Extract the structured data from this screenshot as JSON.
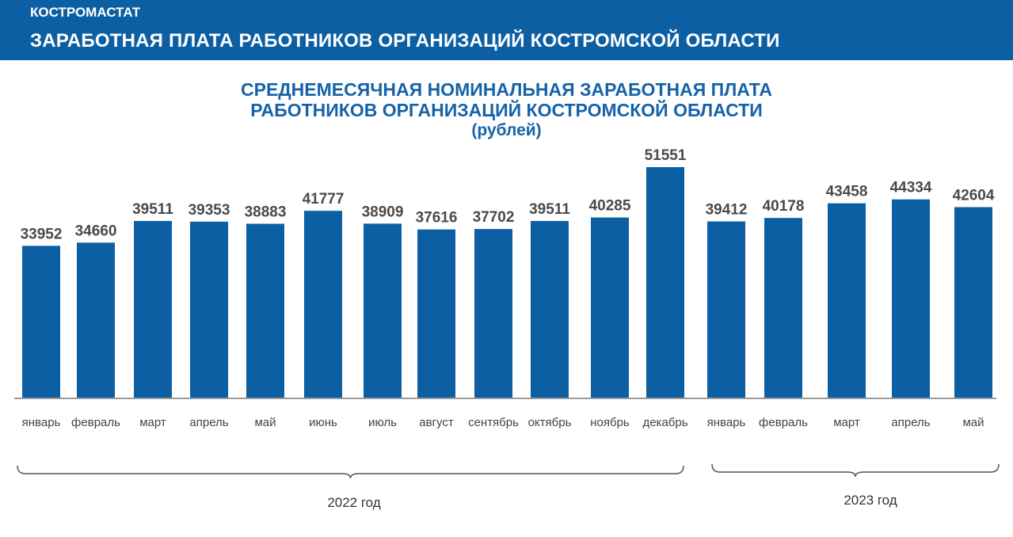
{
  "header": {
    "org": "КОСТРОМАСТАТ",
    "title": "ЗАРАБОТНАЯ ПЛАТА РАБОТНИКОВ ОРГАНИЗАЦИЙ КОСТРОМСКОЙ ОБЛАСТИ"
  },
  "colors": {
    "header_bg": "#0d5fa3",
    "bar": "#0d5fa3",
    "title": "#1563a8"
  },
  "chart_data": {
    "type": "bar",
    "title_line1": "СРЕДНЕМЕСЯЧНАЯ НОМИНАЛЬНАЯ ЗАРАБОТНАЯ ПЛАТА",
    "title_line2": "РАБОТНИКОВ ОРГАНИЗАЦИЙ КОСТРОМСКОЙ ОБЛАСТИ",
    "unit": "(рублей)",
    "categories": [
      "январь",
      "февраль",
      "март",
      "апрель",
      "май",
      "июнь",
      "июль",
      "август",
      "сентябрь",
      "октябрь",
      "ноябрь",
      "декабрь",
      "январь",
      "февраль",
      "март",
      "апрель",
      "май"
    ],
    "values": [
      33952,
      34660,
      39511,
      39353,
      38883,
      41777,
      38909,
      37616,
      37702,
      39511,
      40285,
      51551,
      39412,
      40178,
      43458,
      44334,
      42604
    ],
    "ylim": [
      0,
      51551
    ],
    "groups": [
      {
        "label": "2022 год",
        "start": 0,
        "end": 11
      },
      {
        "label": "2023 год",
        "start": 12,
        "end": 16
      }
    ]
  }
}
